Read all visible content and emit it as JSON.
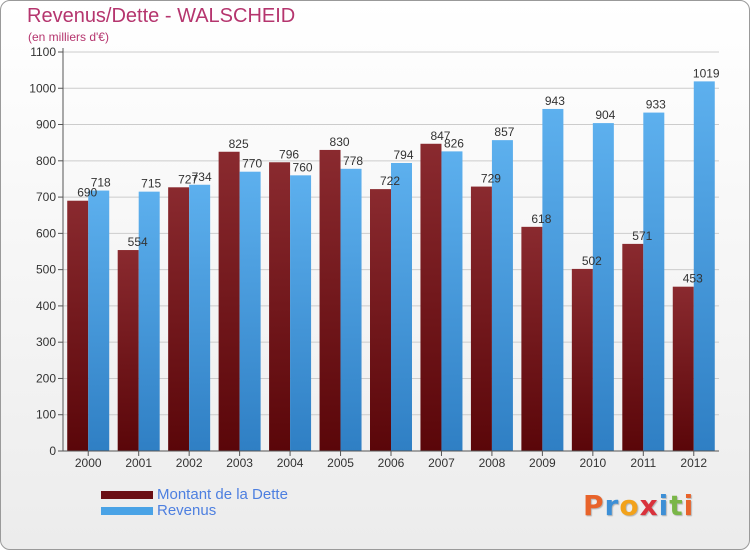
{
  "header": {
    "title": "Revenus/Dette - WALSCHEID",
    "subtitle": "(en milliers d'€)"
  },
  "legend": {
    "items": [
      {
        "label": "Montant de la Dette",
        "color": "#6b0f14"
      },
      {
        "label": "Revenus",
        "color": "#4aa3e6"
      }
    ]
  },
  "logo": {
    "text": "Proxiti",
    "letters": [
      {
        "ch": "P",
        "color": "#e8632a"
      },
      {
        "ch": "r",
        "color": "#3d8fd6"
      },
      {
        "ch": "o",
        "color": "#f2a21b"
      },
      {
        "ch": "x",
        "color": "#d9323c"
      },
      {
        "ch": "i",
        "color": "#3d8fd6"
      },
      {
        "ch": "t",
        "color": "#7ab648"
      },
      {
        "ch": "i",
        "color": "#e8632a"
      }
    ]
  },
  "chart_data": {
    "type": "bar",
    "title": "Revenus/Dette - WALSCHEID",
    "subtitle": "(en milliers d'€)",
    "categories": [
      "2000",
      "2001",
      "2002",
      "2003",
      "2004",
      "2005",
      "2006",
      "2007",
      "2008",
      "2009",
      "2010",
      "2011",
      "2012"
    ],
    "series": [
      {
        "name": "Montant de la Dette",
        "color": "#6b0f14",
        "values": [
          690,
          554,
          727,
          825,
          796,
          830,
          722,
          847,
          729,
          618,
          502,
          571,
          453
        ]
      },
      {
        "name": "Revenus",
        "color": "#4aa3e6",
        "values": [
          718,
          715,
          734,
          770,
          760,
          778,
          794,
          826,
          857,
          943,
          904,
          933,
          1019
        ]
      }
    ],
    "ylim": [
      0,
      1100
    ],
    "yticks": [
      0,
      100,
      200,
      300,
      400,
      500,
      600,
      700,
      800,
      900,
      1000,
      1100
    ],
    "grid": true,
    "legend_position": "bottom-left"
  }
}
